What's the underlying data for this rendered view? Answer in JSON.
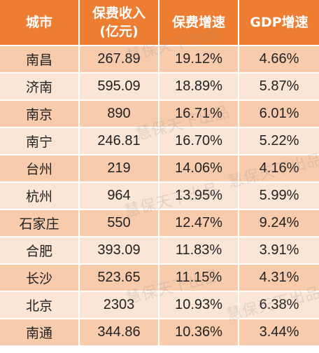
{
  "table": {
    "headers": {
      "city": "城市",
      "premium_line1": "保费收入",
      "premium_line2": "(亿元)",
      "premium_growth": "保费增速",
      "gdp_growth": "GDP增速"
    },
    "rows": [
      {
        "city": "南昌",
        "premium": "267.89",
        "premium_growth": "19.12%",
        "gdp_growth": "4.66%"
      },
      {
        "city": "济南",
        "premium": "595.09",
        "premium_growth": "18.89%",
        "gdp_growth": "5.87%"
      },
      {
        "city": "南京",
        "premium": "890",
        "premium_growth": "16.71%",
        "gdp_growth": "6.01%"
      },
      {
        "city": "南宁",
        "premium": "246.81",
        "premium_growth": "16.70%",
        "gdp_growth": "5.22%"
      },
      {
        "city": "台州",
        "premium": "219",
        "premium_growth": "14.06%",
        "gdp_growth": "4.16%"
      },
      {
        "city": "杭州",
        "premium": "964",
        "premium_growth": "13.95%",
        "gdp_growth": "5.99%"
      },
      {
        "city": "石家庄",
        "premium": "550",
        "premium_growth": "12.47%",
        "gdp_growth": "9.24%"
      },
      {
        "city": "合肥",
        "premium": "393.09",
        "premium_growth": "11.83%",
        "gdp_growth": "3.91%"
      },
      {
        "city": "长沙",
        "premium": "523.65",
        "premium_growth": "11.15%",
        "gdp_growth": "4.31%"
      },
      {
        "city": "北京",
        "premium": "2303",
        "premium_growth": "10.93%",
        "gdp_growth": "6.38%"
      },
      {
        "city": "南通",
        "premium": "344.86",
        "premium_growth": "10.36%",
        "gdp_growth": "3.44%"
      }
    ]
  },
  "watermark": "慧保天下出品",
  "colors": {
    "header_bg": "#ED7D31",
    "row_dark": "#F8CBAD",
    "row_light": "#FBE5D6"
  }
}
